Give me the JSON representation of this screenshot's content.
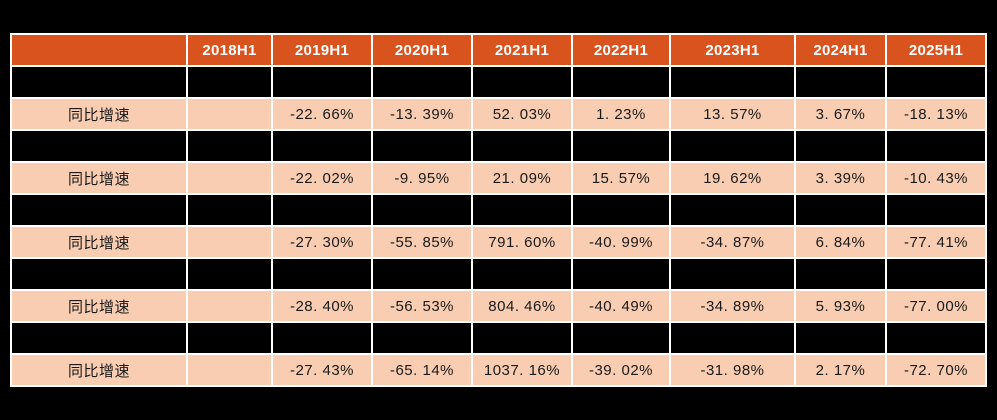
{
  "colors": {
    "page_bg": "#000000",
    "grid": "#FFFFFF",
    "header_bg": "#D9531E",
    "header_text": "#FFFFFF",
    "data_row_bg": "#F8CDB1",
    "data_text": "#1A1A1A",
    "redaction_bg": "#000000"
  },
  "table": {
    "rows": [
      {
        "type": "header",
        "cells": [
          "",
          "2018H1",
          "2019H1",
          "2020H1",
          "2021H1",
          "2022H1",
          "2023H1",
          "2024H1",
          "2025H1"
        ]
      },
      {
        "type": "redacted",
        "cells": [
          "",
          "",
          "",
          "",
          "",
          "",
          "",
          "",
          ""
        ]
      },
      {
        "type": "data",
        "cells": [
          "同比增速",
          "",
          "-22. 66%",
          "-13. 39%",
          "52. 03%",
          "1. 23%",
          "13. 57%",
          "3. 67%",
          "-18. 13%"
        ]
      },
      {
        "type": "redacted",
        "cells": [
          "",
          "",
          "",
          "",
          "",
          "",
          "",
          "",
          ""
        ]
      },
      {
        "type": "data",
        "cells": [
          "同比增速",
          "",
          "-22. 02%",
          "-9. 95%",
          "21. 09%",
          "15. 57%",
          "19. 62%",
          "3. 39%",
          "-10. 43%"
        ]
      },
      {
        "type": "redacted",
        "cells": [
          "",
          "",
          "",
          "",
          "",
          "",
          "",
          "",
          ""
        ]
      },
      {
        "type": "data",
        "cells": [
          "同比增速",
          "",
          "-27. 30%",
          "-55. 85%",
          "791. 60%",
          "-40. 99%",
          "-34. 87%",
          "6. 84%",
          "-77. 41%"
        ]
      },
      {
        "type": "redacted",
        "cells": [
          "",
          "",
          "",
          "",
          "",
          "",
          "",
          "",
          ""
        ]
      },
      {
        "type": "data",
        "cells": [
          "同比增速",
          "",
          "-28. 40%",
          "-56. 53%",
          "804. 46%",
          "-40. 49%",
          "-34. 89%",
          "5. 93%",
          "-77. 00%"
        ]
      },
      {
        "type": "redacted",
        "cells": [
          "",
          "",
          "",
          "",
          "",
          "",
          "",
          "",
          ""
        ]
      },
      {
        "type": "data",
        "cells": [
          "同比增速",
          "",
          "-27. 43%",
          "-65. 14%",
          "1037. 16%",
          "-39. 02%",
          "-31. 98%",
          "2. 17%",
          "-72. 70%"
        ]
      }
    ]
  },
  "chart_data": {
    "type": "table",
    "title": "",
    "categories": [
      "2018H1",
      "2019H1",
      "2020H1",
      "2021H1",
      "2022H1",
      "2023H1",
      "2024H1",
      "2025H1"
    ],
    "row_label": "同比增速",
    "series": [
      {
        "name": "同比增速 (row 1)",
        "values": [
          null,
          -22.66,
          -13.39,
          52.03,
          1.23,
          13.57,
          3.67,
          -18.13
        ]
      },
      {
        "name": "同比增速 (row 2)",
        "values": [
          null,
          -22.02,
          -9.95,
          21.09,
          15.57,
          19.62,
          3.39,
          -10.43
        ]
      },
      {
        "name": "同比增速 (row 3)",
        "values": [
          null,
          -27.3,
          -55.85,
          791.6,
          -40.99,
          -34.87,
          6.84,
          -77.41
        ]
      },
      {
        "name": "同比增速 (row 4)",
        "values": [
          null,
          -28.4,
          -56.53,
          804.46,
          -40.49,
          -34.89,
          5.93,
          -77.0
        ]
      },
      {
        "name": "同比增速 (row 5)",
        "values": [
          null,
          -27.43,
          -65.14,
          1037.16,
          -39.02,
          -31.98,
          2.17,
          -72.7
        ]
      }
    ],
    "unit": "%",
    "layout": "alternating redacted (black) rows and growth-rate rows; 2018H1 column empty"
  }
}
